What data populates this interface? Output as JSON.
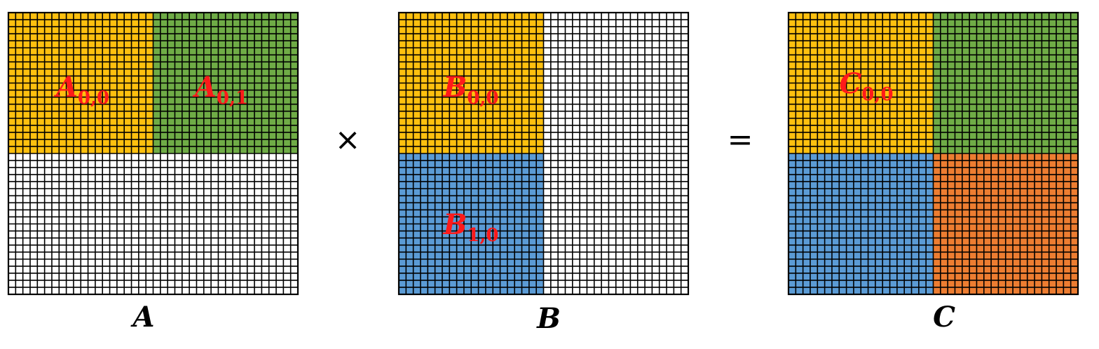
{
  "colors": {
    "yellow": "#fec00f",
    "green": "#6fac46",
    "blue": "#5b9bd5",
    "orange": "#ed7d31",
    "white": "#ffffff",
    "gridline": "#000000",
    "label": "#ff1a1a"
  },
  "operators": {
    "times": "×",
    "equals": "="
  },
  "matrices": [
    {
      "id": "A",
      "name": "A",
      "blocks": [
        {
          "pos": "top-left",
          "color": "yellow",
          "label": {
            "base": "A",
            "sub": "0,0"
          }
        },
        {
          "pos": "top-right",
          "color": "green",
          "label": {
            "base": "A",
            "sub": "0,1"
          }
        },
        {
          "pos": "bottom-left",
          "color": "white",
          "label": null
        },
        {
          "pos": "bottom-right",
          "color": "white",
          "label": null
        }
      ]
    },
    {
      "id": "B",
      "name": "B",
      "blocks": [
        {
          "pos": "top-left",
          "color": "yellow",
          "label": {
            "base": "B",
            "sub": "0,0"
          }
        },
        {
          "pos": "top-right",
          "color": "white",
          "label": null
        },
        {
          "pos": "bottom-left",
          "color": "blue",
          "label": {
            "base": "B",
            "sub": "1,0"
          }
        },
        {
          "pos": "bottom-right",
          "color": "white",
          "label": null
        }
      ]
    },
    {
      "id": "C",
      "name": "C",
      "blocks": [
        {
          "pos": "top-left",
          "color": "yellow",
          "label": {
            "base": "C",
            "sub": "0,0"
          }
        },
        {
          "pos": "top-right",
          "color": "green",
          "label": null
        },
        {
          "pos": "bottom-left",
          "color": "blue",
          "label": null
        },
        {
          "pos": "bottom-right",
          "color": "orange",
          "label": null
        }
      ]
    }
  ]
}
